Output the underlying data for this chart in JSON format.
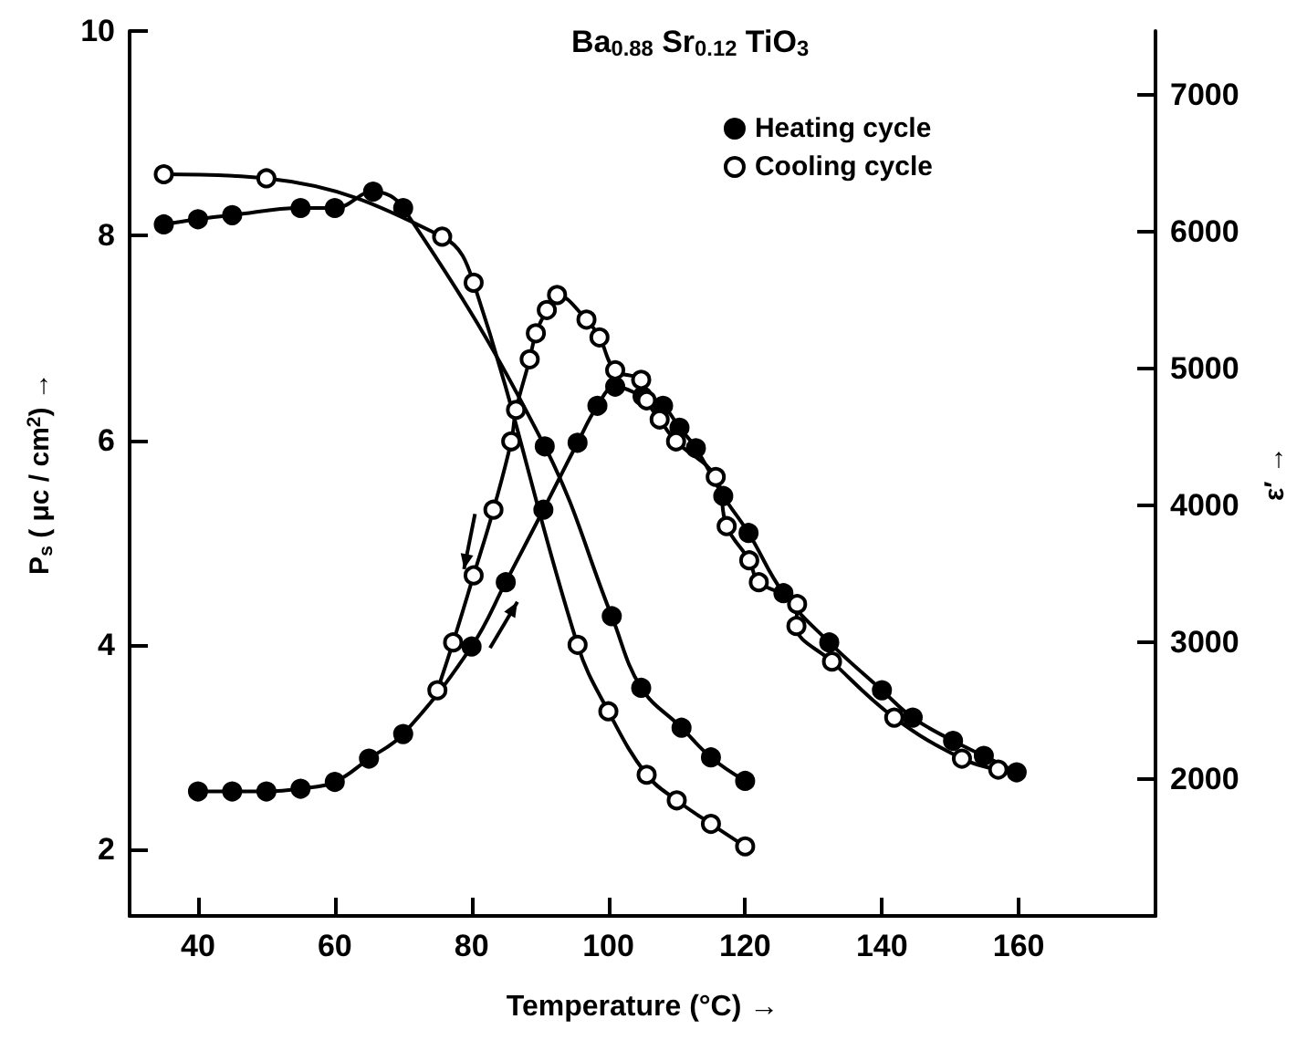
{
  "chart_data": {
    "type": "line",
    "title": "Ba$_{0.88}$ Sr$_{0.12}$ TiO$_{3}$",
    "xlabel": "Temperature (°C) →",
    "ylabel": "P$_{s}$ ( μc / cm$^{2}$) →",
    "y2label": "ε′ →",
    "xlim": [
      30,
      180
    ],
    "xticks": [
      40,
      60,
      80,
      100,
      120,
      140,
      160
    ],
    "ylim": [
      1.35,
      10
    ],
    "yticks": [
      2,
      4,
      6,
      8,
      10
    ],
    "y2lim": [
      1000,
      7470
    ],
    "y2ticks": [
      2000,
      3000,
      4000,
      5000,
      6000,
      7000
    ],
    "grid": false,
    "legend": "top right",
    "line_style": "solid",
    "series": [
      {
        "name": "Heating cycle",
        "color": "#000000",
        "marker": "circle",
        "x": [
          35,
          40,
          45,
          55,
          60,
          65.6,
          70,
          90.7,
          100.5,
          104.8,
          110.7,
          115,
          120
        ],
        "values": [
          8.11,
          8.16,
          8.2,
          8.27,
          8.27,
          8.43,
          8.27,
          5.94,
          4.28,
          3.58,
          3.19,
          2.9,
          2.67
        ]
      },
      {
        "name": "Cooling cycle",
        "color": "#000000",
        "marker": "open circle",
        "x": [
          35,
          50,
          75.7,
          80.3,
          95.5,
          100,
          105.6,
          110,
          115,
          120
        ],
        "values": [
          8.6,
          8.56,
          7.99,
          7.54,
          4.0,
          3.35,
          2.73,
          2.48,
          2.25,
          2.03
        ]
      },
      {
        "color": "#000000",
        "marker": "circle",
        "axis": "y2",
        "x": [
          40,
          45,
          50,
          55,
          60,
          65,
          70,
          80,
          85,
          90.5,
          95.5,
          98.4,
          101,
          105,
          108,
          110.4,
          112.8,
          116.8,
          120.5,
          125.6,
          132.3,
          140,
          144.5,
          150.4,
          154.9,
          159.7
        ],
        "values": [
          1910,
          1910,
          1910,
          1930,
          1980,
          2150,
          2330,
          2970,
          3440,
          3970,
          4460,
          4730,
          4870,
          4800,
          4730,
          4570,
          4420,
          4070,
          3800,
          3360,
          3000,
          2650,
          2450,
          2280,
          2170,
          2050
        ]
      },
      {
        "color": "#000000",
        "marker": "open circle",
        "axis": "y2",
        "x": [
          75,
          77.3,
          80.3,
          83.2,
          85.8,
          86.5,
          88.5,
          89.4,
          91,
          92.5,
          96.8,
          98.7,
          101,
          104.8,
          105.6,
          107.5,
          109.9,
          115.7,
          117.3,
          120.6,
          122,
          127.6,
          127.5,
          132.7,
          141.8,
          151.7,
          157
        ],
        "values": [
          2650,
          3000,
          3490,
          3970,
          4470,
          4700,
          5070,
          5260,
          5430,
          5540,
          5360,
          5230,
          4990,
          4920,
          4770,
          4630,
          4470,
          4210,
          3850,
          3600,
          3440,
          3280,
          3120,
          2860,
          2450,
          2150,
          2070
        ]
      }
    ]
  }
}
